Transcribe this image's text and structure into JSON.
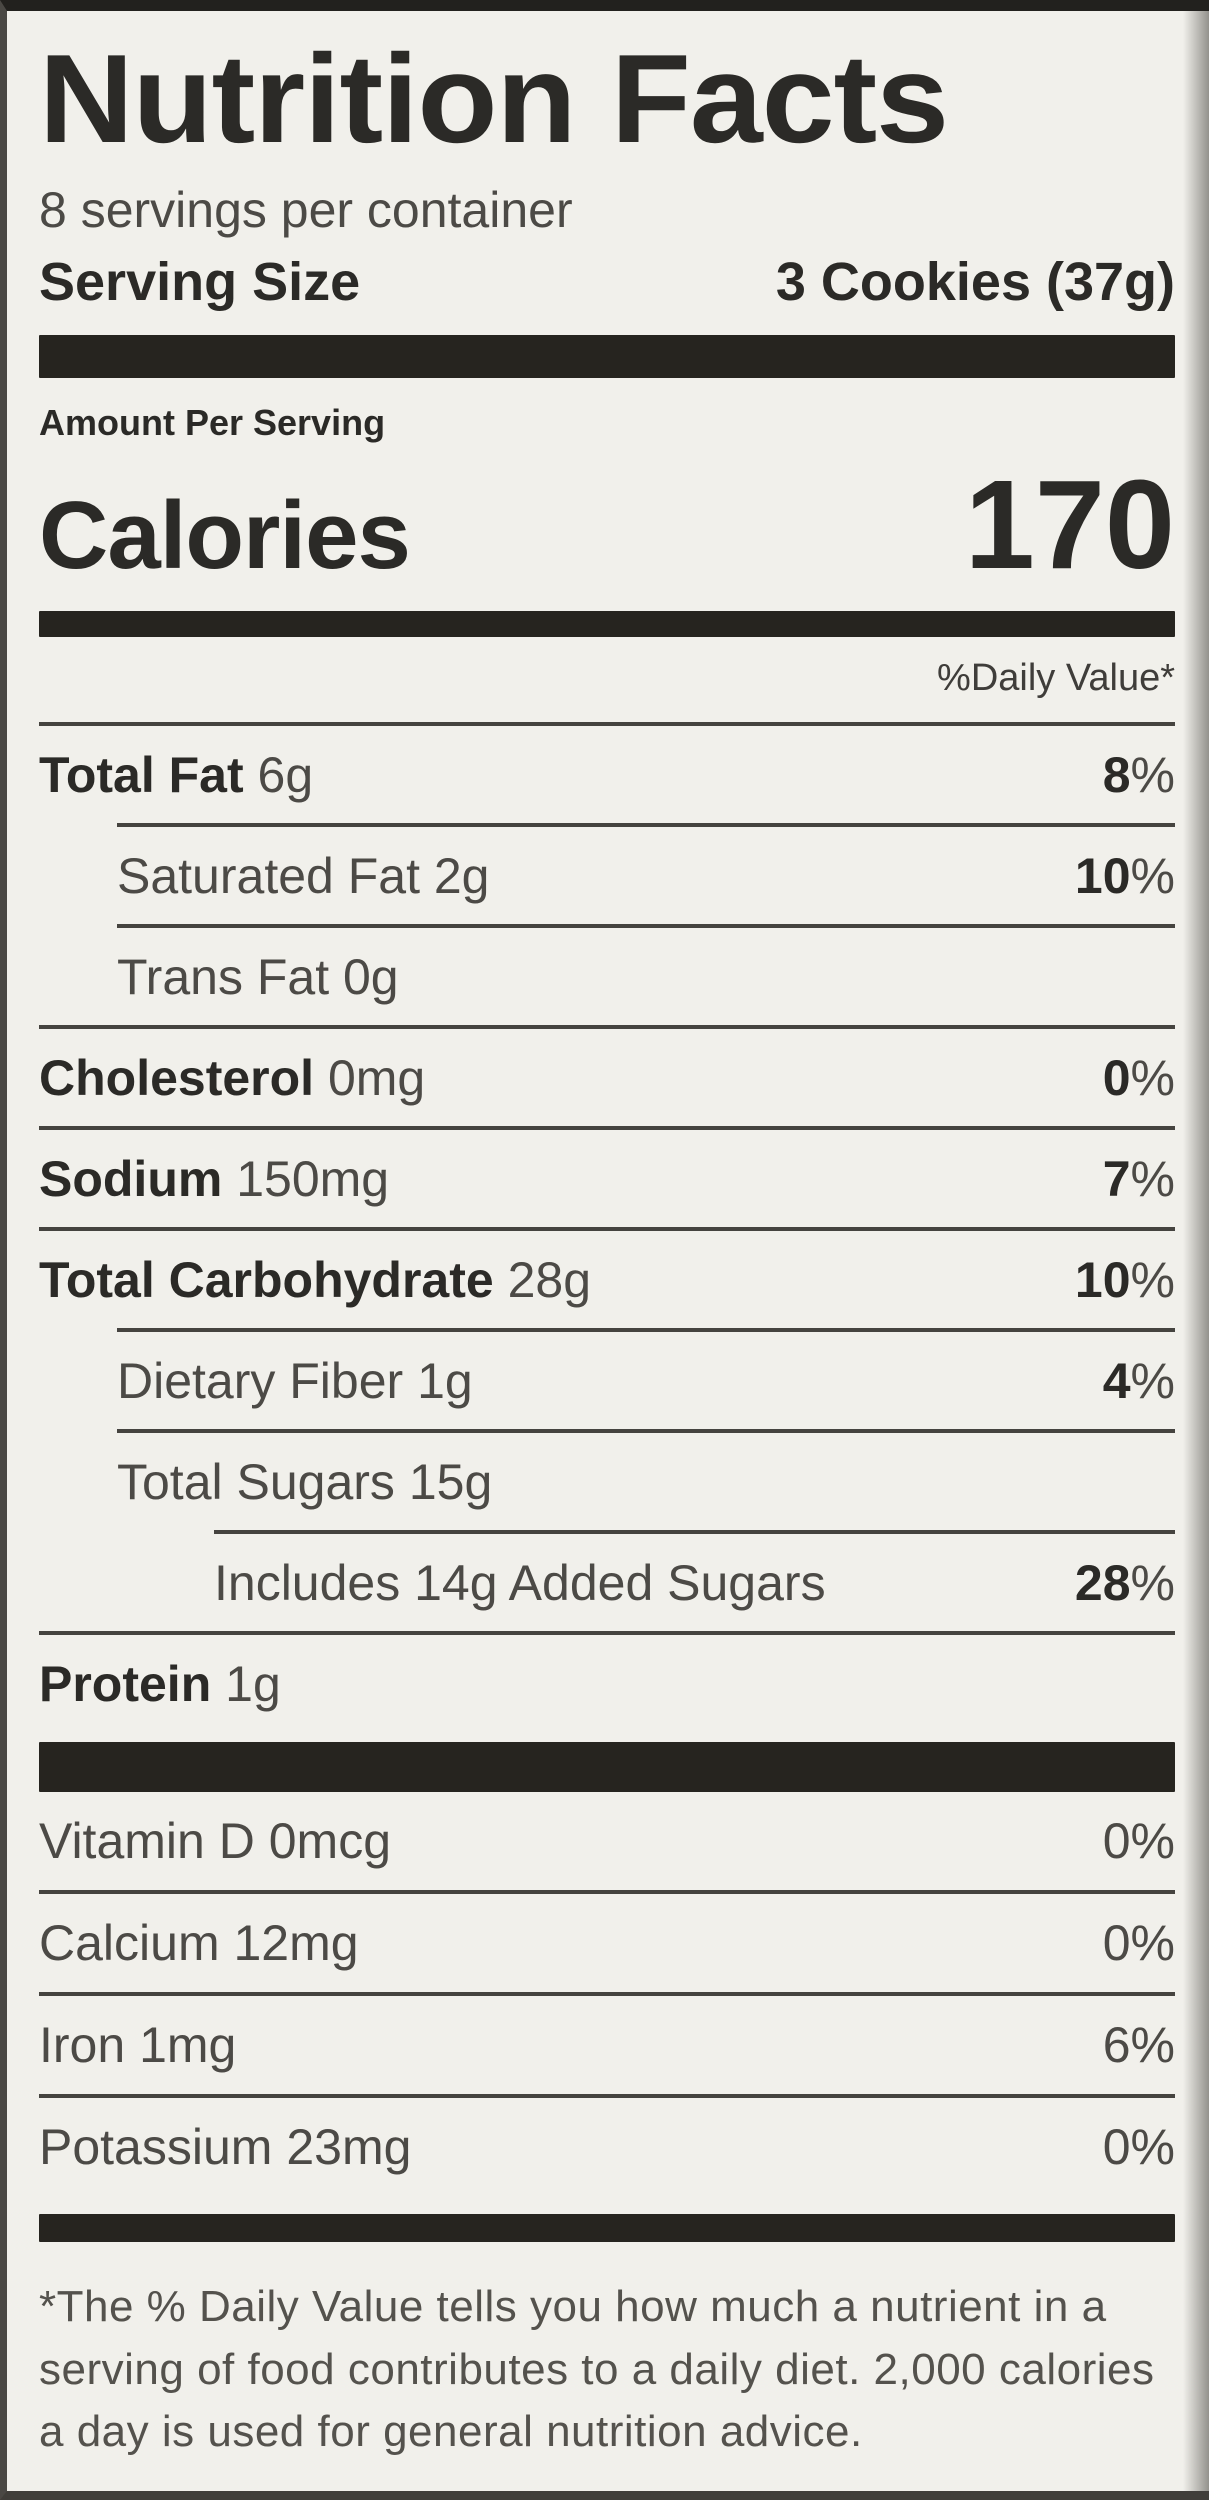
{
  "label": {
    "title": "Nutrition Facts",
    "servings_per_container": "8 servings per container",
    "serving_size_label": "Serving Size",
    "serving_size_value": "3 Cookies (37g)",
    "amount_per_serving": "Amount Per Serving",
    "calories_label": "Calories",
    "calories_value": "170",
    "daily_value_header": "%Daily Value*",
    "rows": [
      {
        "name": "Total Fat",
        "amount": "6g",
        "dv": "8%"
      },
      {
        "name": "Saturated Fat",
        "amount": "2g",
        "dv": "10%"
      },
      {
        "name": "Trans Fat",
        "amount": "0g",
        "dv": ""
      },
      {
        "name": "Cholesterol",
        "amount": "0mg",
        "dv": "0%"
      },
      {
        "name": "Sodium",
        "amount": "150mg",
        "dv": "7%"
      },
      {
        "name": "Total Carbohydrate",
        "amount": "28g",
        "dv": "10%"
      },
      {
        "name": "Dietary Fiber",
        "amount": "1g",
        "dv": "4%"
      },
      {
        "name": "Total Sugars",
        "amount": "15g",
        "dv": ""
      },
      {
        "name": "Includes 14g Added Sugars",
        "amount": "",
        "dv": "28%"
      },
      {
        "name": "Protein",
        "amount": "1g",
        "dv": ""
      }
    ],
    "micronutrients": [
      {
        "name": "Vitamin D",
        "amount": "0mcg",
        "dv": "0%"
      },
      {
        "name": "Calcium",
        "amount": "12mg",
        "dv": "0%"
      },
      {
        "name": "Iron",
        "amount": "1mg",
        "dv": "6%"
      },
      {
        "name": "Potassium",
        "amount": "23mg",
        "dv": "0%"
      }
    ],
    "footnote": "*The % Daily Value tells you how much a nutrient in a serving of food contributes to a daily diet. 2,000 calories a day is used for general nutrition advice."
  },
  "colors": {
    "background": "#f1f0eb",
    "bar": "#26241f",
    "text_bold": "#2b2a27",
    "text_regular": "#4c4a46",
    "rule": "#45433f",
    "footnote_text": "#54524d"
  }
}
